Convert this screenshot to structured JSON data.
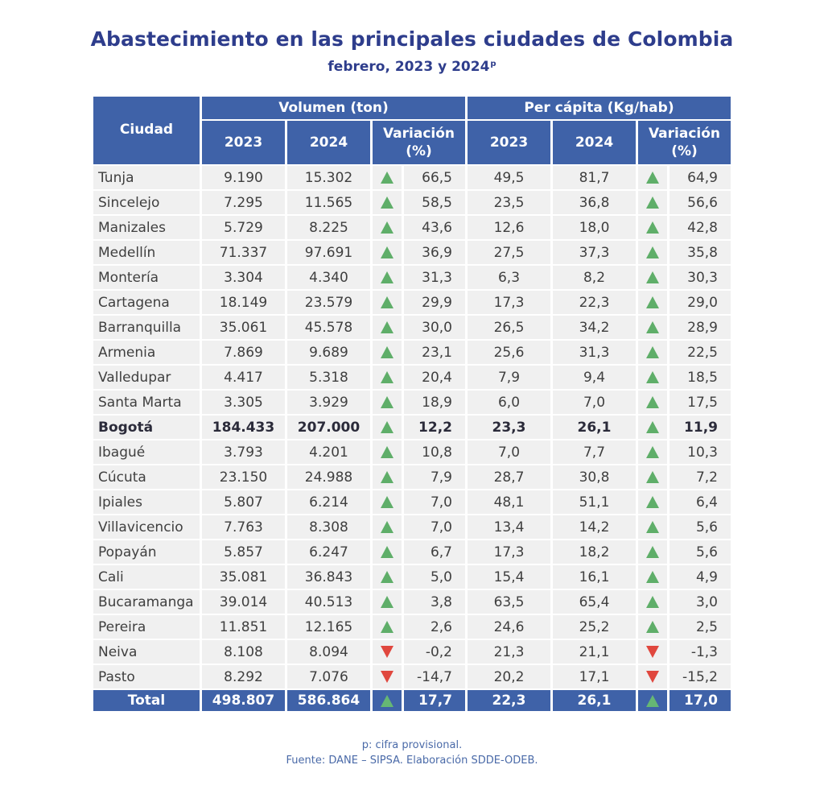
{
  "title": "Abastecimiento en las principales ciudades de Colombia",
  "subtitle": "febrero, 2023 y 2024",
  "subtitle_sup": "p",
  "footnotes": {
    "note": "p: cifra provisional.",
    "source": "Fuente: DANE – SIPSA. Elaboración SDDE-ODEB."
  },
  "colors": {
    "header_bg": "#3f62a8",
    "title": "#2e3d8c",
    "up": "#5fae69",
    "down": "#e0473e",
    "row_bg": "#f0f0f0"
  },
  "chart_data": {
    "type": "table",
    "headers": {
      "city": "Ciudad",
      "volume_group": "Volumen (ton)",
      "percapita_group": "Per cápita (Kg/hab)",
      "year_2023": "2023",
      "year_2024": "2024",
      "variation": "Variación (%)"
    },
    "rows": [
      {
        "city": "Tunja",
        "v23": "9.190",
        "v24": "15.302",
        "vdir": "up",
        "vvar": "66,5",
        "p23": "49,5",
        "p24": "81,7",
        "pdir": "up",
        "pvar": "64,9"
      },
      {
        "city": "Sincelejo",
        "v23": "7.295",
        "v24": "11.565",
        "vdir": "up",
        "vvar": "58,5",
        "p23": "23,5",
        "p24": "36,8",
        "pdir": "up",
        "pvar": "56,6"
      },
      {
        "city": "Manizales",
        "v23": "5.729",
        "v24": "8.225",
        "vdir": "up",
        "vvar": "43,6",
        "p23": "12,6",
        "p24": "18,0",
        "pdir": "up",
        "pvar": "42,8"
      },
      {
        "city": "Medellín",
        "v23": "71.337",
        "v24": "97.691",
        "vdir": "up",
        "vvar": "36,9",
        "p23": "27,5",
        "p24": "37,3",
        "pdir": "up",
        "pvar": "35,8"
      },
      {
        "city": "Montería",
        "v23": "3.304",
        "v24": "4.340",
        "vdir": "up",
        "vvar": "31,3",
        "p23": "6,3",
        "p24": "8,2",
        "pdir": "up",
        "pvar": "30,3"
      },
      {
        "city": "Cartagena",
        "v23": "18.149",
        "v24": "23.579",
        "vdir": "up",
        "vvar": "29,9",
        "p23": "17,3",
        "p24": "22,3",
        "pdir": "up",
        "pvar": "29,0"
      },
      {
        "city": "Barranquilla",
        "v23": "35.061",
        "v24": "45.578",
        "vdir": "up",
        "vvar": "30,0",
        "p23": "26,5",
        "p24": "34,2",
        "pdir": "up",
        "pvar": "28,9"
      },
      {
        "city": "Armenia",
        "v23": "7.869",
        "v24": "9.689",
        "vdir": "up",
        "vvar": "23,1",
        "p23": "25,6",
        "p24": "31,3",
        "pdir": "up",
        "pvar": "22,5"
      },
      {
        "city": "Valledupar",
        "v23": "4.417",
        "v24": "5.318",
        "vdir": "up",
        "vvar": "20,4",
        "p23": "7,9",
        "p24": "9,4",
        "pdir": "up",
        "pvar": "18,5"
      },
      {
        "city": "Santa Marta",
        "v23": "3.305",
        "v24": "3.929",
        "vdir": "up",
        "vvar": "18,9",
        "p23": "6,0",
        "p24": "7,0",
        "pdir": "up",
        "pvar": "17,5"
      },
      {
        "city": "Bogotá",
        "v23": "184.433",
        "v24": "207.000",
        "vdir": "up",
        "vvar": "12,2",
        "p23": "23,3",
        "p24": "26,1",
        "pdir": "up",
        "pvar": "11,9",
        "bold": true
      },
      {
        "city": "Ibagué",
        "v23": "3.793",
        "v24": "4.201",
        "vdir": "up",
        "vvar": "10,8",
        "p23": "7,0",
        "p24": "7,7",
        "pdir": "up",
        "pvar": "10,3"
      },
      {
        "city": "Cúcuta",
        "v23": "23.150",
        "v24": "24.988",
        "vdir": "up",
        "vvar": "7,9",
        "p23": "28,7",
        "p24": "30,8",
        "pdir": "up",
        "pvar": "7,2"
      },
      {
        "city": "Ipiales",
        "v23": "5.807",
        "v24": "6.214",
        "vdir": "up",
        "vvar": "7,0",
        "p23": "48,1",
        "p24": "51,1",
        "pdir": "up",
        "pvar": "6,4"
      },
      {
        "city": "Villavicencio",
        "v23": "7.763",
        "v24": "8.308",
        "vdir": "up",
        "vvar": "7,0",
        "p23": "13,4",
        "p24": "14,2",
        "pdir": "up",
        "pvar": "5,6"
      },
      {
        "city": "Popayán",
        "v23": "5.857",
        "v24": "6.247",
        "vdir": "up",
        "vvar": "6,7",
        "p23": "17,3",
        "p24": "18,2",
        "pdir": "up",
        "pvar": "5,6"
      },
      {
        "city": "Cali",
        "v23": "35.081",
        "v24": "36.843",
        "vdir": "up",
        "vvar": "5,0",
        "p23": "15,4",
        "p24": "16,1",
        "pdir": "up",
        "pvar": "4,9"
      },
      {
        "city": "Bucaramanga",
        "v23": "39.014",
        "v24": "40.513",
        "vdir": "up",
        "vvar": "3,8",
        "p23": "63,5",
        "p24": "65,4",
        "pdir": "up",
        "pvar": "3,0"
      },
      {
        "city": "Pereira",
        "v23": "11.851",
        "v24": "12.165",
        "vdir": "up",
        "vvar": "2,6",
        "p23": "24,6",
        "p24": "25,2",
        "pdir": "up",
        "pvar": "2,5"
      },
      {
        "city": "Neiva",
        "v23": "8.108",
        "v24": "8.094",
        "vdir": "down",
        "vvar": "-0,2",
        "p23": "21,3",
        "p24": "21,1",
        "pdir": "down",
        "pvar": "-1,3"
      },
      {
        "city": "Pasto",
        "v23": "8.292",
        "v24": "7.076",
        "vdir": "down",
        "vvar": "-14,7",
        "p23": "20,2",
        "p24": "17,1",
        "pdir": "down",
        "pvar": "-15,2"
      }
    ],
    "total": {
      "city": "Total",
      "v23": "498.807",
      "v24": "586.864",
      "vdir": "up",
      "vvar": "17,7",
      "p23": "22,3",
      "p24": "26,1",
      "pdir": "up",
      "pvar": "17,0"
    }
  }
}
